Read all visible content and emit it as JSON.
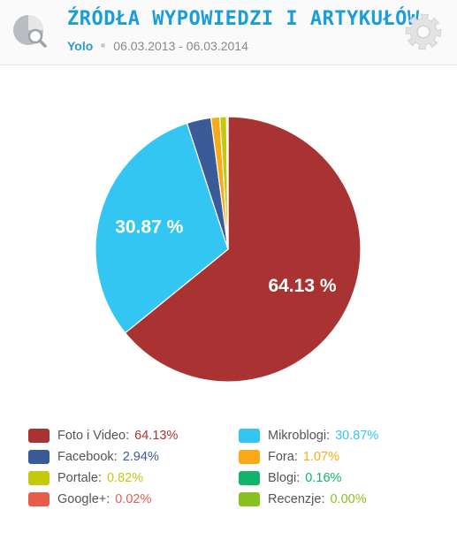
{
  "header": {
    "title": "ŹRÓDŁA WYPOWIEDZI I ARTYKUŁÓW",
    "project": "Yolo",
    "date_range": "06.03.2013 - 06.03.2014",
    "app_icon": "pie-search-icon",
    "settings_icon": "gear-icon"
  },
  "chart_data": {
    "type": "pie",
    "title": "",
    "slices": [
      {
        "name": "Foto i Video",
        "value": 64.13,
        "label": "64.13%",
        "slice_label": "64.13 %",
        "color": "#a93333",
        "value_color": "#a93333"
      },
      {
        "name": "Mikroblogi",
        "value": 30.87,
        "label": "30.87%",
        "slice_label": "30.87 %",
        "color": "#33c6f2",
        "value_color": "#33c6f2"
      },
      {
        "name": "Facebook",
        "value": 2.94,
        "label": "2.94%",
        "slice_label": "",
        "color": "#3a5a98",
        "value_color": "#3a5a98"
      },
      {
        "name": "Fora",
        "value": 1.07,
        "label": "1.07%",
        "slice_label": "",
        "color": "#f9aa16",
        "value_color": "#f9aa16"
      },
      {
        "name": "Portale",
        "value": 0.82,
        "label": "0.82%",
        "slice_label": "",
        "color": "#c5c90a",
        "value_color": "#c5c90a"
      },
      {
        "name": "Blogi",
        "value": 0.16,
        "label": "0.16%",
        "slice_label": "",
        "color": "#12b36a",
        "value_color": "#12b36a"
      },
      {
        "name": "Google+",
        "value": 0.02,
        "label": "0.02%",
        "slice_label": "",
        "color": "#e85c4a",
        "value_color": "#e85c4a"
      },
      {
        "name": "Recenzje",
        "value": 0.0,
        "label": "0.00%",
        "slice_label": "",
        "color": "#88c21e",
        "value_color": "#88c21e"
      }
    ],
    "pie_order": [
      "Foto i Video",
      "Mikroblogi",
      "Facebook",
      "Fora",
      "Portale",
      "Blogi",
      "Google+",
      "Recenzje"
    ],
    "start_angle_deg": 0,
    "direction": "clockwise",
    "legend_placement": "bottom"
  }
}
